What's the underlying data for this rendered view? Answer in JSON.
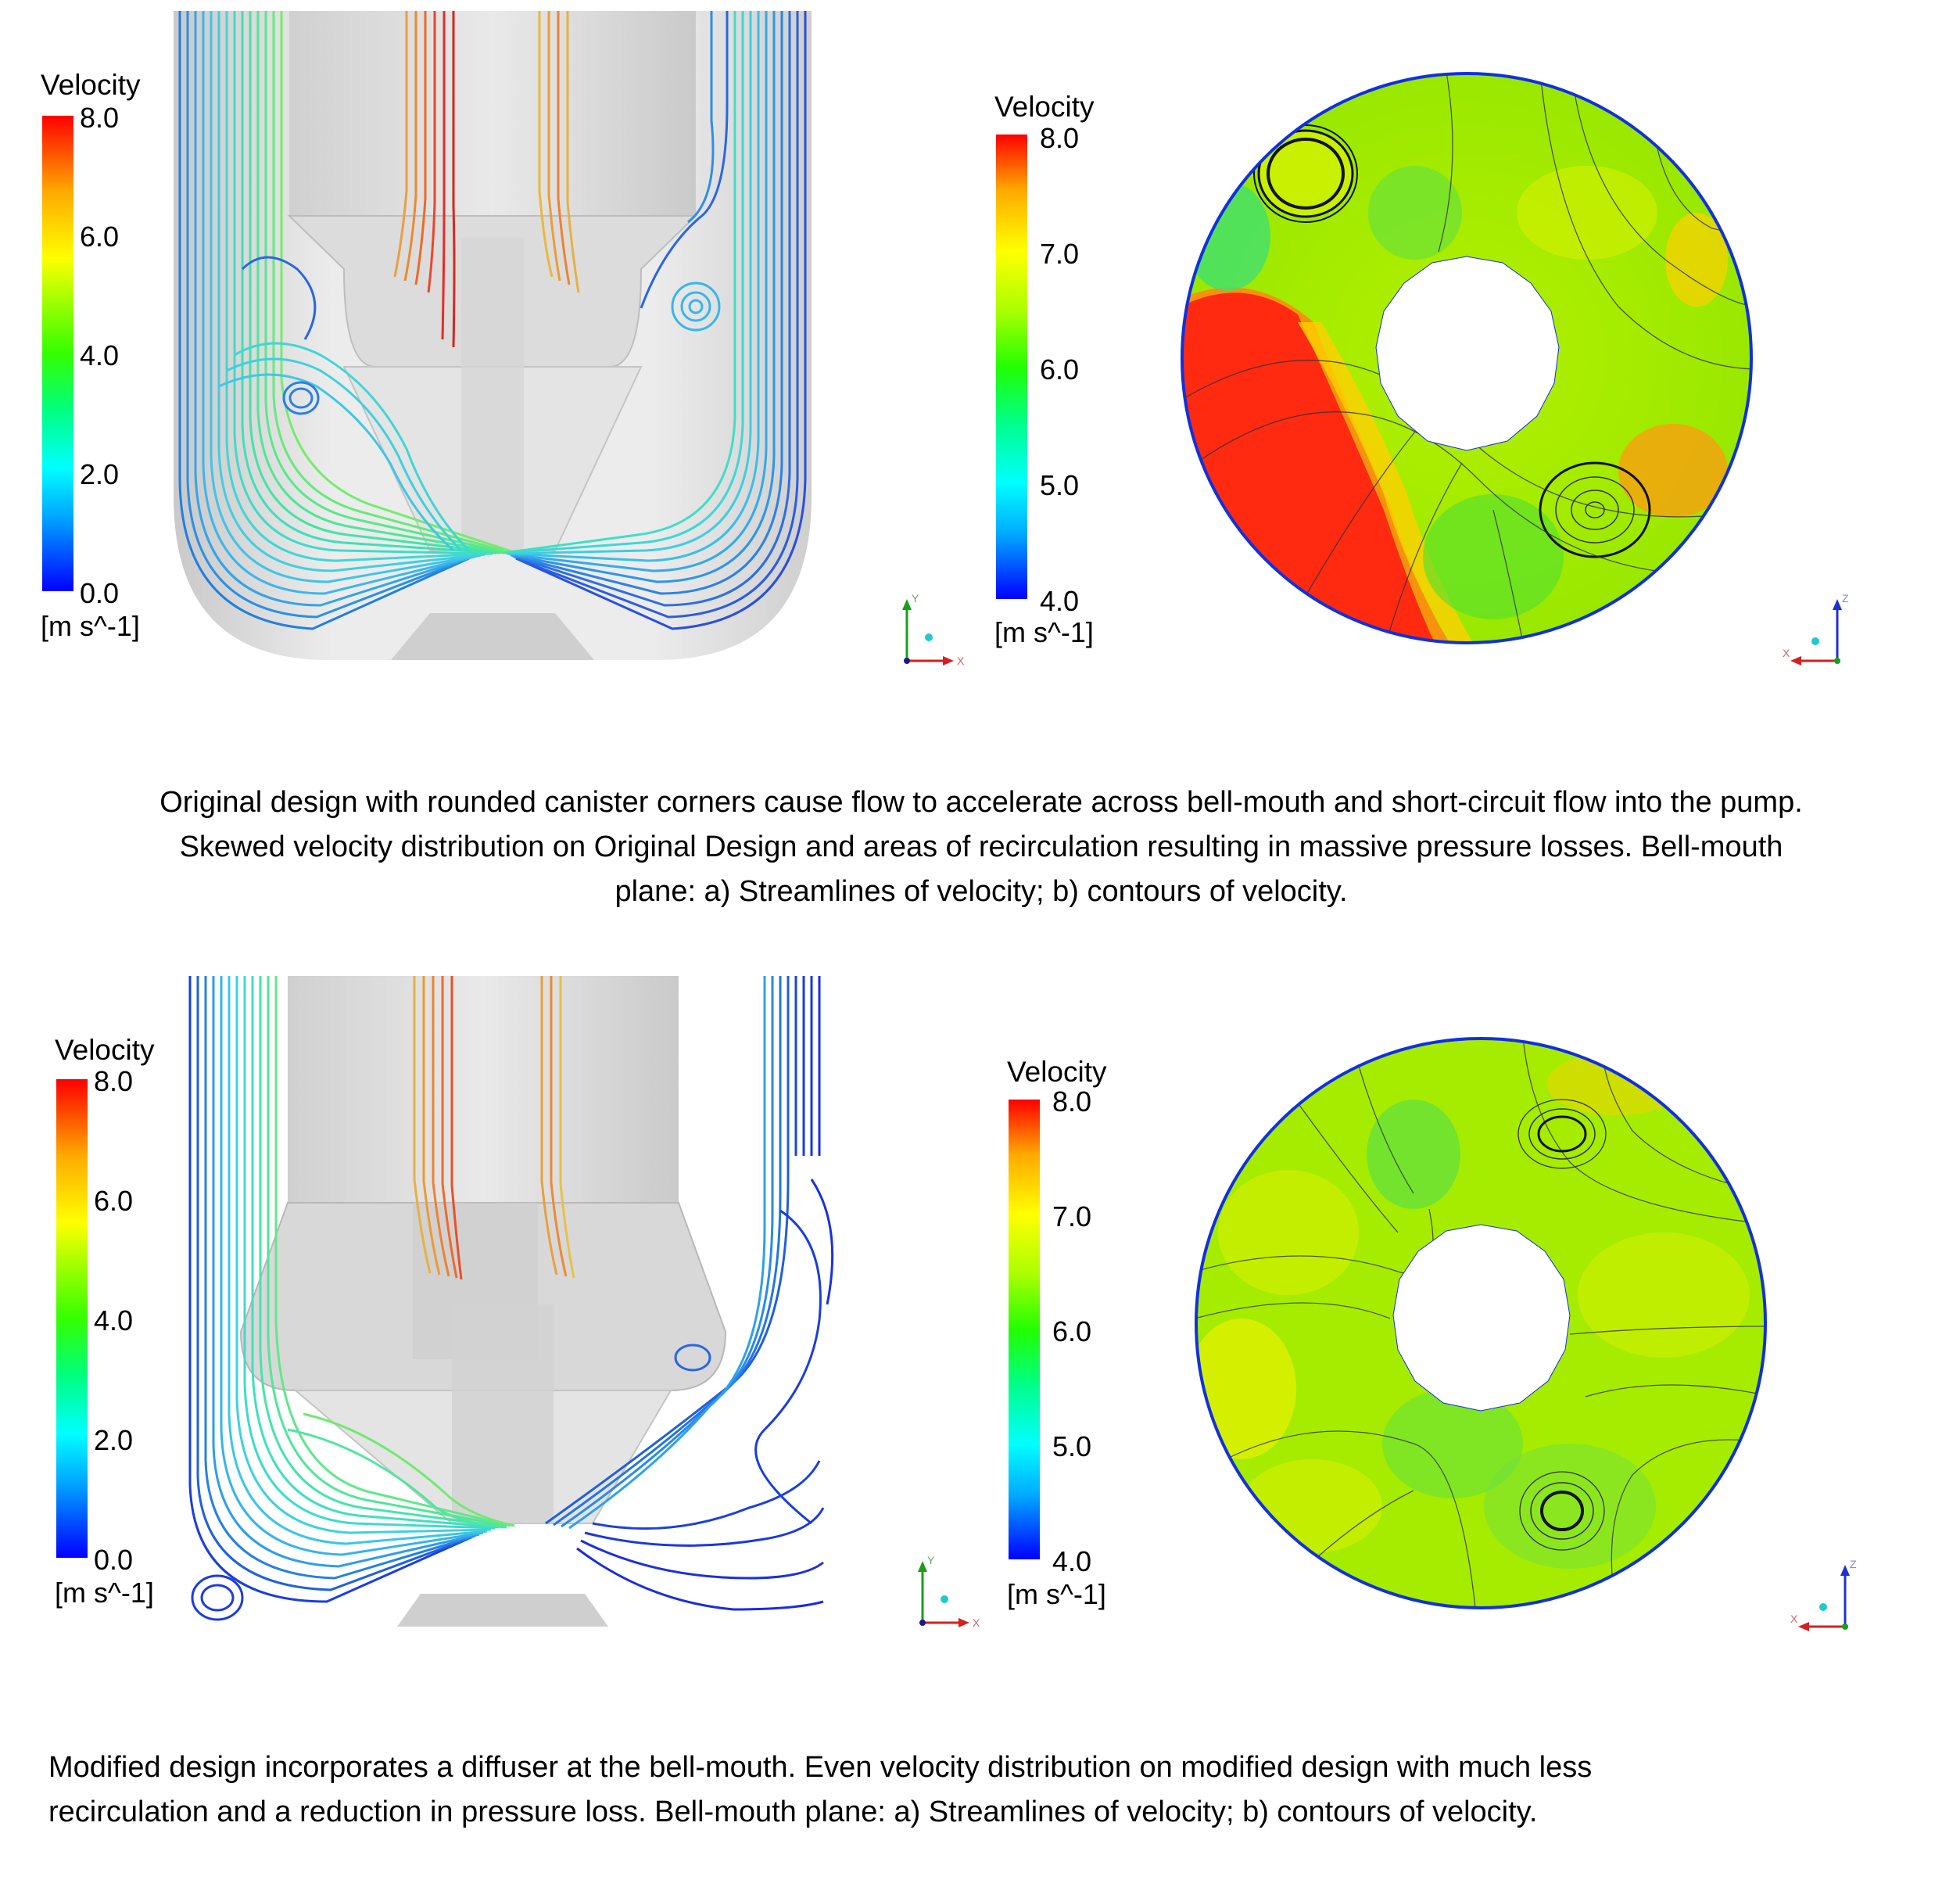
{
  "top": {
    "streamline_legend": {
      "title": "Velocity",
      "ticks": [
        "8.0",
        "6.0",
        "4.0",
        "2.0",
        "0.0"
      ],
      "unit": "[m s^-1]"
    },
    "contour_legend": {
      "title": "Velocity",
      "ticks": [
        "8.0",
        "7.0",
        "6.0",
        "5.0",
        "4.0"
      ],
      "unit": "[m s^-1]"
    },
    "triad_streamline": {
      "y": "Y",
      "x": "X"
    },
    "triad_contour": {
      "z": "Z",
      "x": "X"
    },
    "caption": [
      "Original design with rounded canister corners cause flow to accelerate across bell-mouth and short-circuit flow into the pump.",
      "Skewed velocity distribution on Original Design and areas of recirculation resulting in massive pressure losses.  Bell-mouth",
      "plane: a) Streamlines of velocity; b) contours of velocity."
    ]
  },
  "bottom": {
    "streamline_legend": {
      "title": "Velocity",
      "ticks": [
        "8.0",
        "6.0",
        "4.0",
        "2.0",
        "0.0"
      ],
      "unit": "[m s^-1]"
    },
    "contour_legend": {
      "title": "Velocity",
      "ticks": [
        "8.0",
        "7.0",
        "6.0",
        "5.0",
        "4.0"
      ],
      "unit": "[m s^-1]"
    },
    "triad_streamline": {
      "y": "Y",
      "x": "X"
    },
    "triad_contour": {
      "z": "Z",
      "x": "X"
    },
    "caption": [
      "Modified design incorporates a diffuser at the bell-mouth.  Even velocity distribution on modified design with much less",
      "recirculation and a reduction in pressure loss.  Bell-mouth plane: a) Streamlines of velocity; b) contours of velocity."
    ]
  }
}
